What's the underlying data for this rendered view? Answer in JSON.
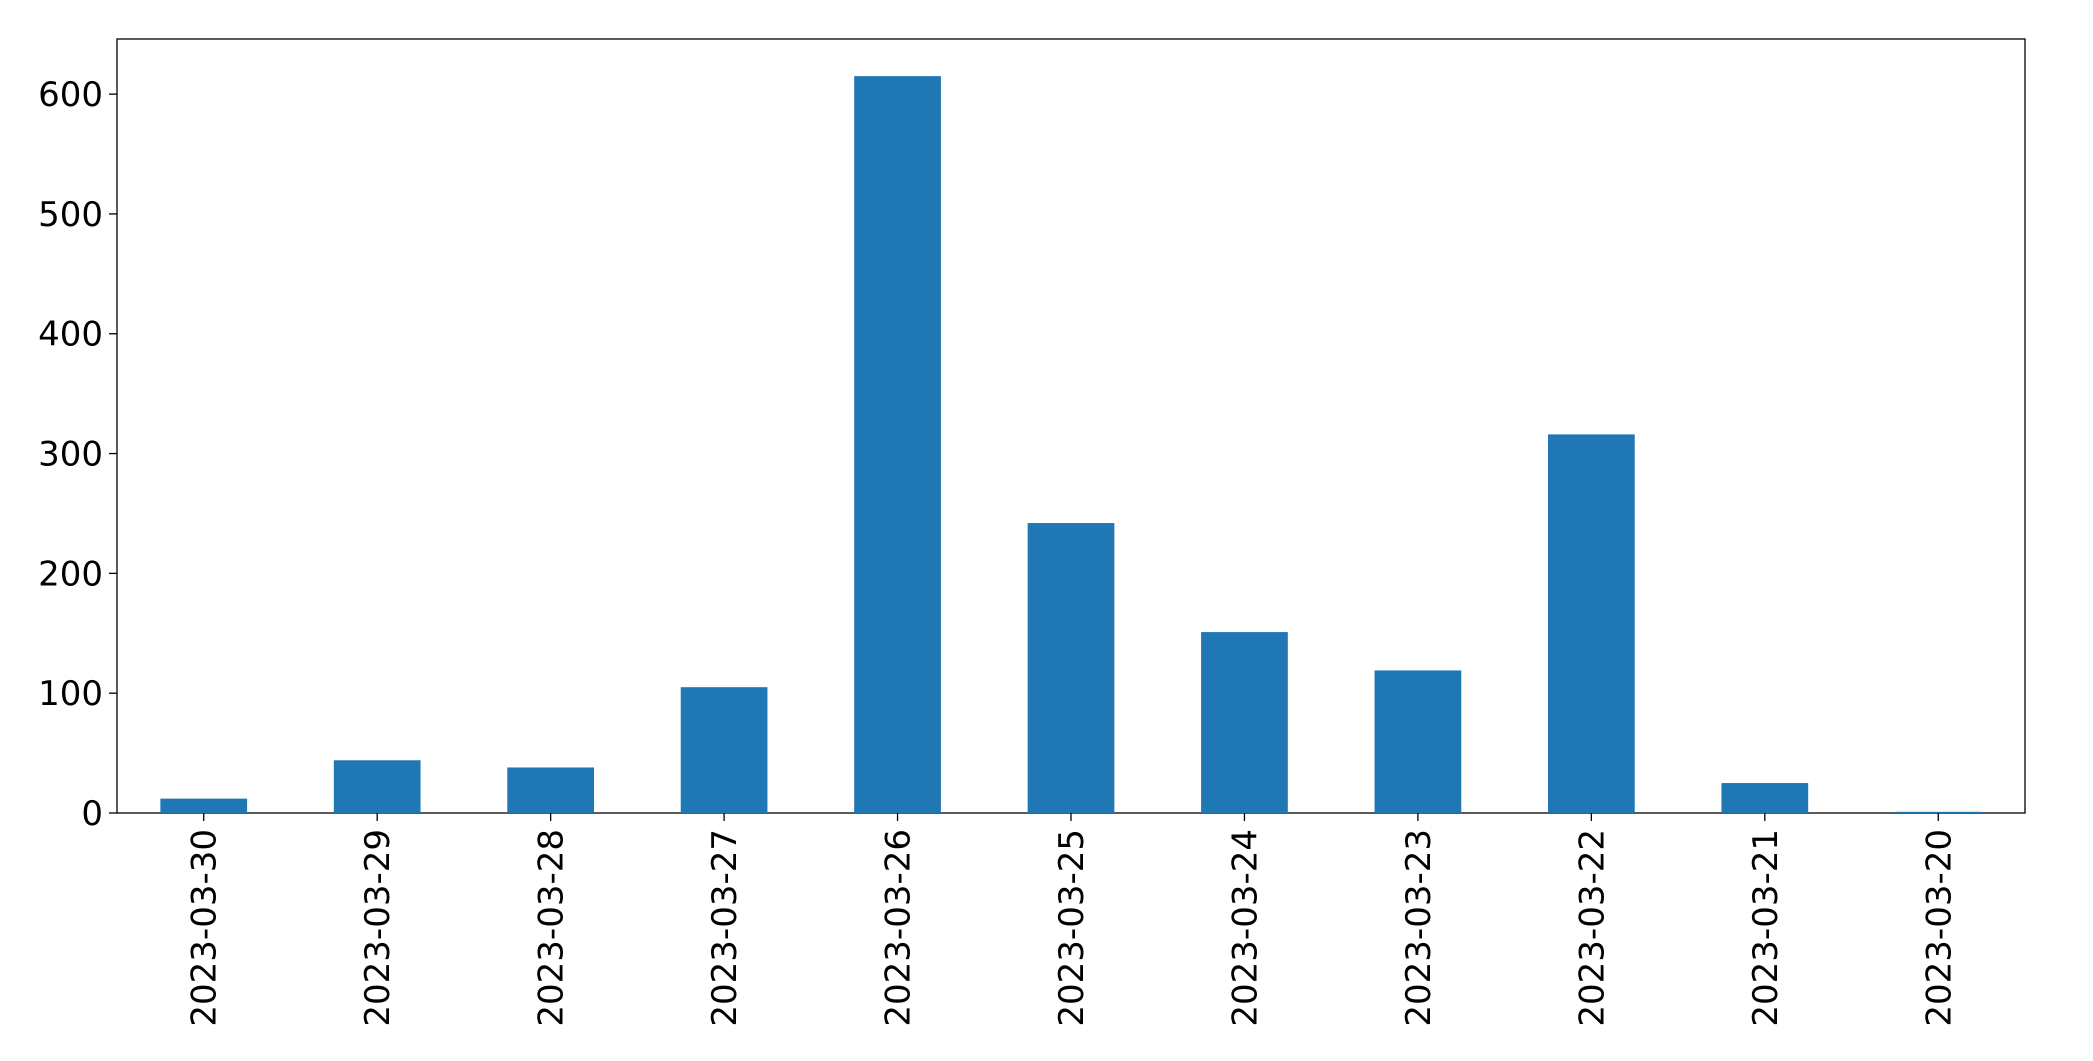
{
  "chart_data": {
    "type": "bar",
    "categories": [
      "2023-03-30",
      "2023-03-29",
      "2023-03-28",
      "2023-03-27",
      "2023-03-26",
      "2023-03-25",
      "2023-03-24",
      "2023-03-23",
      "2023-03-22",
      "2023-03-21",
      "2023-03-20"
    ],
    "values": [
      12,
      44,
      38,
      105,
      615,
      242,
      151,
      119,
      316,
      25,
      1
    ],
    "color": "#1f77b4",
    "ylim": [
      0,
      646
    ],
    "yticks": [
      0,
      100,
      200,
      300,
      400,
      500,
      600
    ],
    "grid": false
  }
}
